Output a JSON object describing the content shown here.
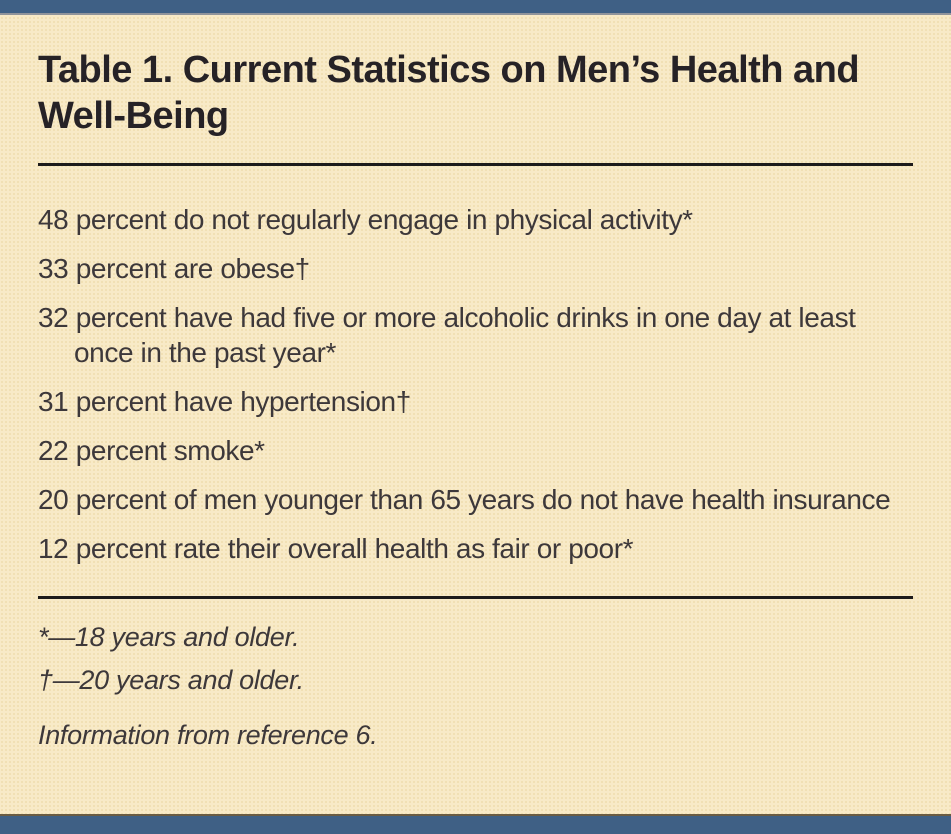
{
  "table": {
    "title": "Table 1. Current Statistics on Men’s Health and Well-Being",
    "items": [
      "48 percent do not regularly engage in physical activity*",
      "33 percent are obese†",
      "32 percent have had five or more alcoholic drinks in one day at least once in the past year*",
      "31 percent have hypertension†",
      "22 percent smoke*",
      "20 percent of men younger than 65 years do not have health insurance",
      "12 percent rate their overall health as fair or poor*"
    ],
    "footnotes": [
      "*—18 years and older.",
      "†—20 years and older."
    ],
    "source": "Information from reference 6."
  },
  "colors": {
    "accent_bar": "#3f6085",
    "background": "#f8eac7",
    "title_text": "#262226",
    "body_text": "#3d383a",
    "rule": "#1d1b1b",
    "bottom_bar_edge": "#6a5c43"
  }
}
